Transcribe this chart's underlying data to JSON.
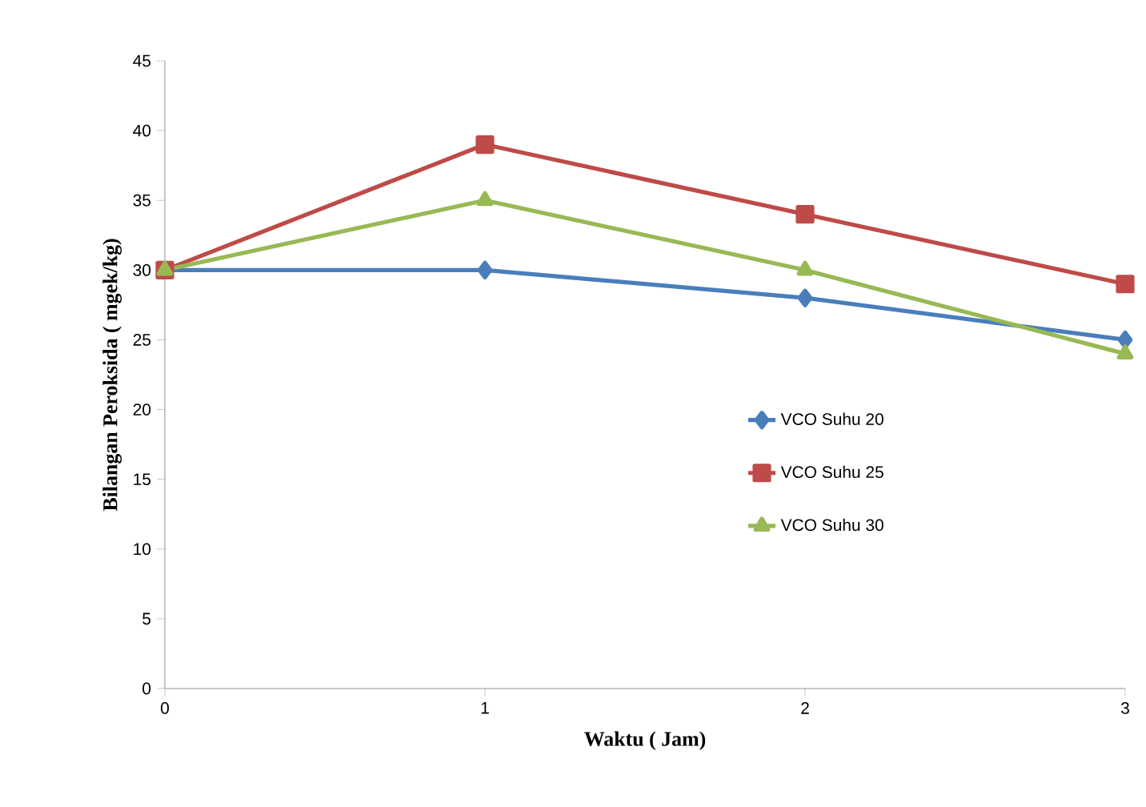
{
  "chart_data": {
    "type": "line",
    "xlabel": "Waktu ( Jam)",
    "ylabel": "Bilangan Peroksida ( mgek/kg)",
    "x": [
      0,
      1,
      2,
      3
    ],
    "xlim": [
      0,
      3
    ],
    "xticks": [
      0,
      1,
      2,
      3
    ],
    "ylim": [
      0,
      45
    ],
    "yticks": [
      0,
      5,
      10,
      15,
      20,
      25,
      30,
      35,
      40,
      45
    ],
    "grid": false,
    "legend": "right",
    "line_style": "solid",
    "series": [
      {
        "name": "VCO Suhu 20",
        "color": "#4a7ebb",
        "marker": "diamond",
        "values": [
          30,
          30,
          28,
          25
        ]
      },
      {
        "name": "VCO Suhu 25",
        "color": "#be4b48",
        "marker": "square",
        "values": [
          30,
          39,
          34,
          29
        ]
      },
      {
        "name": "VCO Suhu 30",
        "color": "#98b954",
        "marker": "triangle",
        "values": [
          30,
          35,
          30,
          24
        ]
      }
    ]
  }
}
